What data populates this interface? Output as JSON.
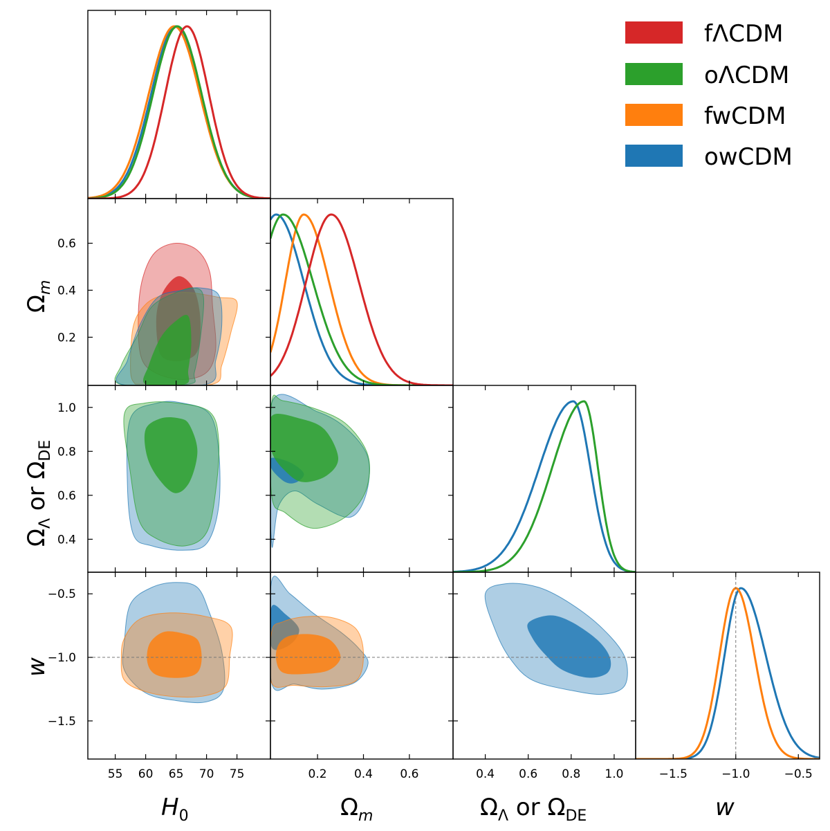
{
  "chart_data": {
    "type": "corner",
    "title": "",
    "parameters": [
      "H0",
      "Omega_m",
      "Omega_Lambda or Omega_DE",
      "w"
    ],
    "axis_labels": {
      "H0": {
        "main": "H",
        "sub": "0"
      },
      "Omega_m": {
        "main": "Ω",
        "sub": "m"
      },
      "Omega_L": {
        "main": "Ω",
        "sub": "Λ",
        "mid": " or Ω",
        "sub2": "DE"
      },
      "w": {
        "main": "w"
      }
    },
    "ranges": {
      "H0": [
        50.5,
        80.5
      ],
      "Omega_m": [
        -0.005,
        0.79
      ],
      "Omega_L": [
        0.25,
        1.1
      ],
      "w": [
        -1.8,
        -0.33
      ]
    },
    "ticks": {
      "H0": [
        "55",
        "60",
        "65",
        "70",
        "75"
      ],
      "Omega_m_x": [
        "0.2",
        "0.4",
        "0.6"
      ],
      "Omega_m_y": [
        "0.2",
        "0.4",
        "0.6"
      ],
      "Omega_L_x": [
        "0.4",
        "0.6",
        "0.8",
        "1.0"
      ],
      "Omega_L_y": [
        "0.4",
        "0.6",
        "0.8",
        "1.0"
      ],
      "w_x": [
        "−1.5",
        "−1.0",
        "−0.5"
      ],
      "w_y": [
        "−1.5",
        "−1.0",
        "−0.5"
      ]
    },
    "reference_w": -1.0,
    "legend": {
      "placement": "top-right",
      "entries": [
        {
          "label": "fΛCDM",
          "color": "#d62728"
        },
        {
          "label": "oΛCDM",
          "color": "#2ca02c"
        },
        {
          "label": "fwCDM",
          "color": "#ff7f0e"
        },
        {
          "label": "owCDM",
          "color": "#1f77b4"
        }
      ]
    },
    "series": [
      {
        "name": "fΛCDM",
        "color": "#d62728",
        "H0": {
          "mean": 66.8,
          "sigma": 3.6
        },
        "Omega_m": {
          "mean": 0.26,
          "sigma_low": 0.11,
          "sigma_high": 0.12
        }
      },
      {
        "name": "oΛCDM",
        "color": "#2ca02c",
        "H0": {
          "mean": 65.2,
          "sigma": 4.0
        },
        "Omega_m": {
          "mean": 0.05,
          "sigma_low": 0.1,
          "sigma_high": 0.13
        },
        "Omega_L": {
          "mean": 0.86,
          "sigma_low": 0.15,
          "sigma_high": 0.065
        }
      },
      {
        "name": "fwCDM",
        "color": "#ff7f0e",
        "H0": {
          "mean": 64.7,
          "sigma": 4.2
        },
        "Omega_m": {
          "mean": 0.14,
          "sigma_low": 0.08,
          "sigma_high": 0.11
        },
        "w": {
          "mean": -1.0,
          "sigma_low": 0.13,
          "sigma_high": 0.15
        }
      },
      {
        "name": "owCDM",
        "color": "#1f77b4",
        "H0": {
          "mean": 65.0,
          "sigma": 4.1
        },
        "Omega_m": {
          "mean": 0.02,
          "sigma_low": 0.1,
          "sigma_high": 0.12
        },
        "Omega_L": {
          "mean": 0.81,
          "sigma_low": 0.16,
          "sigma_high": 0.08
        },
        "w": {
          "mean": -0.96,
          "sigma_low": 0.13,
          "sigma_high": 0.2
        }
      }
    ],
    "contours": [
      {
        "panel": "H0-Omega_m",
        "series": "fΛCDM",
        "level": "95%",
        "points": [
          [
            59.2,
            0.12
          ],
          [
            58.8,
            0.3
          ],
          [
            59.5,
            0.45
          ],
          [
            61.5,
            0.56
          ],
          [
            65,
            0.6
          ],
          [
            68.5,
            0.57
          ],
          [
            70.5,
            0.48
          ],
          [
            71,
            0.33
          ],
          [
            71.5,
            0.15
          ],
          [
            70,
            0.05
          ],
          [
            66,
            0.02
          ],
          [
            61.5,
            0.05
          ]
        ]
      },
      {
        "panel": "H0-Omega_m",
        "series": "fΛCDM",
        "level": "68%",
        "points": [
          [
            62,
            0.17
          ],
          [
            61.8,
            0.3
          ],
          [
            63,
            0.4
          ],
          [
            65.5,
            0.46
          ],
          [
            68,
            0.4
          ],
          [
            69,
            0.27
          ],
          [
            68.5,
            0.14
          ],
          [
            66,
            0.1
          ],
          [
            63,
            0.11
          ]
        ]
      },
      {
        "panel": "H0-Omega_m",
        "series": "fwCDM",
        "level": "95%",
        "points": [
          [
            57.5,
            0.08
          ],
          [
            58,
            0.25
          ],
          [
            60,
            0.34
          ],
          [
            63,
            0.38
          ],
          [
            67,
            0.39
          ],
          [
            72,
            0.37
          ],
          [
            75,
            0.35
          ],
          [
            74,
            0.22
          ],
          [
            72.5,
            0.08
          ],
          [
            71,
            0.0
          ],
          [
            60,
            0.0
          ],
          [
            58,
            0.01
          ]
        ]
      },
      {
        "panel": "H0-Omega_m",
        "series": "oΛCDM",
        "level": "95%",
        "points": [
          [
            55.8,
            0.0
          ],
          [
            56,
            0.08
          ],
          [
            58.5,
            0.2
          ],
          [
            61,
            0.33
          ],
          [
            65,
            0.39
          ],
          [
            68,
            0.41
          ],
          [
            69.5,
            0.37
          ],
          [
            69,
            0.2
          ],
          [
            68,
            0.05
          ],
          [
            67,
            0.0
          ]
        ]
      },
      {
        "panel": "H0-Omega_m",
        "series": "owCDM",
        "level": "95%",
        "points": [
          [
            56,
            0.0
          ],
          [
            57,
            0.1
          ],
          [
            59,
            0.25
          ],
          [
            62,
            0.37
          ],
          [
            66,
            0.4
          ],
          [
            69,
            0.41
          ],
          [
            72,
            0.38
          ],
          [
            72.5,
            0.25
          ],
          [
            71.5,
            0.1
          ],
          [
            70,
            0.0
          ]
        ]
      },
      {
        "panel": "H0-Omega_m",
        "series": "oΛCDM",
        "level": "68%",
        "points": [
          [
            60,
            0.0
          ],
          [
            60.5,
            0.08
          ],
          [
            62.5,
            0.2
          ],
          [
            65,
            0.27
          ],
          [
            67,
            0.29
          ],
          [
            67.5,
            0.18
          ],
          [
            67,
            0.06
          ],
          [
            66.5,
            0.0
          ]
        ]
      },
      {
        "panel": "H0-Omega_L",
        "series": "owCDM",
        "level": "95%",
        "points": [
          [
            57.5,
            0.95
          ],
          [
            57,
            0.65
          ],
          [
            58,
            0.42
          ],
          [
            61,
            0.37
          ],
          [
            66,
            0.35
          ],
          [
            70,
            0.38
          ],
          [
            72,
            0.55
          ],
          [
            72,
            0.8
          ],
          [
            70.5,
            0.97
          ],
          [
            66,
            1.02
          ],
          [
            62,
            1.02
          ]
        ]
      },
      {
        "panel": "H0-Omega_L",
        "series": "oΛCDM",
        "level": "95%",
        "points": [
          [
            56.5,
            0.97
          ],
          [
            57.5,
            0.7
          ],
          [
            59,
            0.48
          ],
          [
            62,
            0.4
          ],
          [
            66.5,
            0.37
          ],
          [
            70,
            0.43
          ],
          [
            71.5,
            0.62
          ],
          [
            72,
            0.85
          ],
          [
            70.5,
            0.98
          ],
          [
            65,
            1.02
          ],
          [
            60,
            1.02
          ]
        ]
      },
      {
        "panel": "H0-Omega_L",
        "series": "oΛCDM",
        "level": "68%",
        "points": [
          [
            60,
            0.9
          ],
          [
            60.2,
            0.78
          ],
          [
            62,
            0.68
          ],
          [
            64.8,
            0.61
          ],
          [
            67.2,
            0.66
          ],
          [
            68.5,
            0.8
          ],
          [
            67.2,
            0.92
          ],
          [
            65.5,
            0.95
          ],
          [
            62.5,
            0.95
          ]
        ]
      },
      {
        "panel": "Omega_m-Omega_L",
        "series": "owCDM",
        "level": "95%",
        "points": [
          [
            0.0,
            0.38
          ],
          [
            0.03,
            0.55
          ],
          [
            0.1,
            0.62
          ],
          [
            0.2,
            0.56
          ],
          [
            0.34,
            0.5
          ],
          [
            0.41,
            0.6
          ],
          [
            0.42,
            0.77
          ],
          [
            0.33,
            0.9
          ],
          [
            0.2,
            0.98
          ],
          [
            0.0,
            1.02
          ]
        ]
      },
      {
        "panel": "Omega_m-Omega_L",
        "series": "oΛCDM",
        "level": "95%",
        "points": [
          [
            0.0,
            0.6
          ],
          [
            0.06,
            0.52
          ],
          [
            0.18,
            0.45
          ],
          [
            0.32,
            0.5
          ],
          [
            0.41,
            0.62
          ],
          [
            0.42,
            0.78
          ],
          [
            0.33,
            0.92
          ],
          [
            0.2,
            0.99
          ],
          [
            0.05,
            1.03
          ],
          [
            0.0,
            1.02
          ]
        ]
      },
      {
        "panel": "Omega_m-Omega_L",
        "series": "owCDM",
        "level": "68%",
        "points": [
          [
            0.0,
            0.72
          ],
          [
            0.06,
            0.66
          ],
          [
            0.11,
            0.66
          ],
          [
            0.14,
            0.7
          ],
          [
            0.08,
            0.75
          ],
          [
            0.0,
            0.77
          ]
        ]
      },
      {
        "panel": "Omega_m-Omega_L",
        "series": "oΛCDM",
        "level": "68%",
        "points": [
          [
            0.0,
            0.8
          ],
          [
            0.07,
            0.7
          ],
          [
            0.14,
            0.66
          ],
          [
            0.24,
            0.69
          ],
          [
            0.29,
            0.77
          ],
          [
            0.23,
            0.9
          ],
          [
            0.12,
            0.95
          ],
          [
            0.0,
            0.96
          ]
        ]
      },
      {
        "panel": "H0-w",
        "series": "owCDM",
        "level": "95%",
        "points": [
          [
            56.5,
            -0.88
          ],
          [
            57.5,
            -0.58
          ],
          [
            61,
            -0.45
          ],
          [
            65,
            -0.41
          ],
          [
            68.5,
            -0.45
          ],
          [
            70.5,
            -0.65
          ],
          [
            72.5,
            -0.95
          ],
          [
            72.8,
            -1.25
          ],
          [
            70,
            -1.35
          ],
          [
            65,
            -1.34
          ],
          [
            60,
            -1.28
          ],
          [
            56.5,
            -1.1
          ]
        ]
      },
      {
        "panel": "H0-w",
        "series": "fwCDM",
        "level": "95%",
        "points": [
          [
            56,
            -1.0
          ],
          [
            56.5,
            -0.85
          ],
          [
            59,
            -0.7
          ],
          [
            64,
            -0.65
          ],
          [
            70,
            -0.68
          ],
          [
            74,
            -0.76
          ],
          [
            73.8,
            -1.0
          ],
          [
            73.2,
            -1.22
          ],
          [
            70,
            -1.3
          ],
          [
            65,
            -1.31
          ],
          [
            60,
            -1.27
          ],
          [
            56.5,
            -1.18
          ]
        ]
      },
      {
        "panel": "H0-w",
        "series": "fwCDM",
        "level": "68%",
        "points": [
          [
            60.2,
            -1.0
          ],
          [
            60.8,
            -0.88
          ],
          [
            63,
            -0.8
          ],
          [
            66,
            -0.81
          ],
          [
            68.5,
            -0.86
          ],
          [
            69.2,
            -1.0
          ],
          [
            68.5,
            -1.12
          ],
          [
            66,
            -1.16
          ],
          [
            62.5,
            -1.15
          ],
          [
            60.8,
            -1.1
          ]
        ]
      },
      {
        "panel": "Omega_m-w",
        "series": "owCDM",
        "level": "95%",
        "points": [
          [
            0.0,
            -0.4
          ],
          [
            0.08,
            -0.5
          ],
          [
            0.18,
            -0.65
          ],
          [
            0.3,
            -0.8
          ],
          [
            0.38,
            -0.93
          ],
          [
            0.42,
            -1.05
          ],
          [
            0.36,
            -1.2
          ],
          [
            0.22,
            -1.25
          ],
          [
            0.1,
            -1.21
          ],
          [
            0.0,
            -1.2
          ]
        ]
      },
      {
        "panel": "Omega_m-w",
        "series": "owCDM",
        "level": "68%",
        "points": [
          [
            0.0,
            -0.6
          ],
          [
            0.06,
            -0.66
          ],
          [
            0.12,
            -0.78
          ],
          [
            0.08,
            -0.9
          ],
          [
            0.0,
            -0.92
          ]
        ]
      },
      {
        "panel": "Omega_m-w",
        "series": "fwCDM",
        "level": "95%",
        "points": [
          [
            0.0,
            -0.8
          ],
          [
            0.05,
            -0.72
          ],
          [
            0.15,
            -0.68
          ],
          [
            0.27,
            -0.69
          ],
          [
            0.37,
            -0.78
          ],
          [
            0.4,
            -0.98
          ],
          [
            0.37,
            -1.18
          ],
          [
            0.25,
            -1.23
          ],
          [
            0.1,
            -1.22
          ],
          [
            0.0,
            -1.2
          ]
        ]
      },
      {
        "panel": "Omega_m-w",
        "series": "fwCDM",
        "level": "68%",
        "points": [
          [
            0.03,
            -0.9
          ],
          [
            0.08,
            -0.83
          ],
          [
            0.18,
            -0.82
          ],
          [
            0.26,
            -0.87
          ],
          [
            0.3,
            -1.0
          ],
          [
            0.25,
            -1.1
          ],
          [
            0.15,
            -1.13
          ],
          [
            0.05,
            -1.12
          ],
          [
            0.02,
            -1.02
          ]
        ]
      },
      {
        "panel": "Omega_L-w",
        "series": "owCDM",
        "level": "95%",
        "points": [
          [
            0.4,
            -0.5
          ],
          [
            0.5,
            -0.42
          ],
          [
            0.65,
            -0.45
          ],
          [
            0.8,
            -0.58
          ],
          [
            0.95,
            -0.78
          ],
          [
            1.05,
            -1.0
          ],
          [
            1.05,
            -1.22
          ],
          [
            0.95,
            -1.29
          ],
          [
            0.8,
            -1.26
          ],
          [
            0.62,
            -1.18
          ],
          [
            0.52,
            -1.02
          ],
          [
            0.45,
            -0.8
          ]
        ]
      },
      {
        "panel": "Omega_L-w",
        "series": "owCDM",
        "level": "68%",
        "points": [
          [
            0.6,
            -0.73
          ],
          [
            0.7,
            -0.67
          ],
          [
            0.8,
            -0.72
          ],
          [
            0.92,
            -0.86
          ],
          [
            0.98,
            -1.0
          ],
          [
            0.97,
            -1.12
          ],
          [
            0.88,
            -1.16
          ],
          [
            0.76,
            -1.1
          ],
          [
            0.68,
            -0.98
          ],
          [
            0.62,
            -0.85
          ]
        ]
      }
    ]
  }
}
